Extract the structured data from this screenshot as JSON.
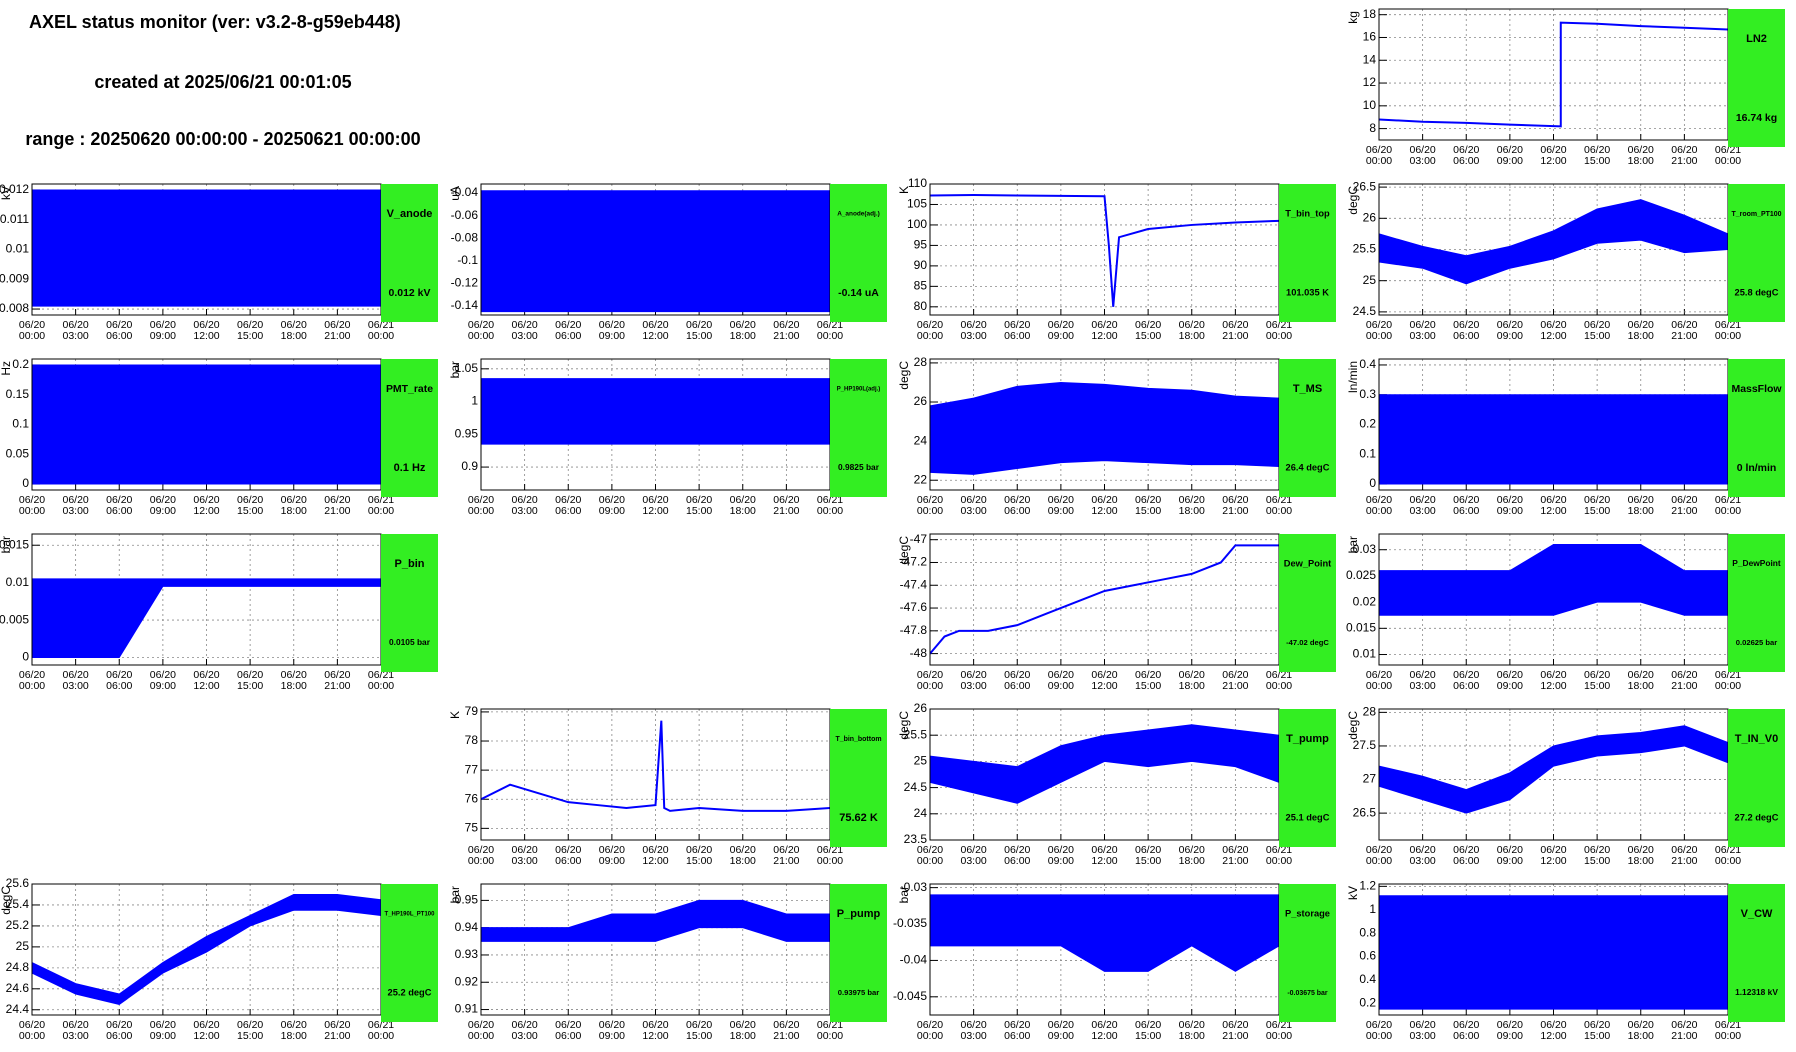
{
  "header": {
    "title": "AXEL status monitor (ver: v3.2-8-g59eb448)",
    "created": "created at 2025/06/21 00:01:05",
    "range": "range : 20250620 00:00:00 - 20250621 00:00:00"
  },
  "time_axis": {
    "xlim": [
      0,
      24
    ],
    "ticks": [
      {
        "value": 0,
        "date": "06/20",
        "time": "00:00"
      },
      {
        "value": 3,
        "date": "06/20",
        "time": "03:00"
      },
      {
        "value": 6,
        "date": "06/20",
        "time": "06:00"
      },
      {
        "value": 9,
        "date": "06/20",
        "time": "09:00"
      },
      {
        "value": 12,
        "date": "06/20",
        "time": "12:00"
      },
      {
        "value": 15,
        "date": "06/20",
        "time": "15:00"
      },
      {
        "value": 18,
        "date": "06/20",
        "time": "18:00"
      },
      {
        "value": 21,
        "date": "06/20",
        "time": "21:00"
      },
      {
        "value": 24,
        "date": "06/21",
        "time": "00:00"
      }
    ]
  },
  "color": "#0000ff",
  "panel_color": "#33ee22",
  "rows": [
    [
      null,
      null,
      null,
      {
        "name": "LN2",
        "unit": "kg",
        "value_text": "16.74 kg",
        "ylim": [
          7,
          18.5
        ],
        "yticks": [
          8,
          10,
          12,
          14,
          16,
          18
        ],
        "x": [
          0,
          3,
          6,
          9,
          12.5,
          12.5,
          15,
          18,
          21,
          24
        ],
        "values": [
          8.8,
          8.6,
          8.5,
          8.35,
          8.2,
          17.3,
          17.2,
          17,
          16.85,
          16.7
        ]
      }
    ],
    [
      {
        "name": "V_anode",
        "unit": "kV",
        "value_text": "0.012 kV",
        "ylim": [
          0.0078,
          0.0122
        ],
        "yticks": [
          0.008,
          0.009,
          0.01,
          0.011,
          0.012
        ],
        "x": [
          0,
          3,
          6,
          9,
          12,
          15,
          18,
          21,
          24
        ],
        "lower": [
          0.0081,
          0.0081,
          0.0081,
          0.0081,
          0.0081,
          0.0081,
          0.0081,
          0.0081,
          0.0081
        ],
        "upper": [
          0.012,
          0.012,
          0.012,
          0.012,
          0.012,
          0.012,
          0.012,
          0.012,
          0.012
        ]
      },
      {
        "name": "A_anode(adj.)",
        "unit": "uA",
        "value_text": "-0.14 uA",
        "ylim": [
          -0.148,
          -0.032
        ],
        "yticks": [
          -0.14,
          -0.12,
          -0.1,
          -0.08,
          -0.06,
          -0.04
        ],
        "x": [
          0,
          3,
          6,
          9,
          12,
          15,
          18,
          21,
          24
        ],
        "lower": [
          -0.145,
          -0.145,
          -0.145,
          -0.145,
          -0.145,
          -0.145,
          -0.145,
          -0.145,
          -0.145
        ],
        "upper": [
          -0.038,
          -0.038,
          -0.038,
          -0.038,
          -0.038,
          -0.038,
          -0.038,
          -0.038,
          -0.038
        ]
      },
      {
        "name": "T_bin_top",
        "unit": "K",
        "value_text": "101.035 K",
        "ylim": [
          78,
          110
        ],
        "yticks": [
          80,
          85,
          90,
          95,
          100,
          105,
          110
        ],
        "x": [
          0,
          3,
          6,
          9,
          12,
          12.3,
          12.6,
          13,
          15,
          18,
          21,
          24
        ],
        "values": [
          107.2,
          107.3,
          107.2,
          107.1,
          107,
          95,
          80,
          97,
          99,
          100,
          100.6,
          101
        ]
      },
      {
        "name": "T_room_PT100",
        "unit": "degC",
        "value_text": "25.8 degC",
        "ylim": [
          24.45,
          26.55
        ],
        "yticks": [
          24.5,
          25,
          25.5,
          26,
          26.5
        ],
        "x": [
          0,
          3,
          6,
          9,
          12,
          15,
          18,
          21,
          24
        ],
        "lower": [
          25.3,
          25.2,
          24.95,
          25.2,
          25.35,
          25.6,
          25.65,
          25.45,
          25.5
        ],
        "upper": [
          25.75,
          25.55,
          25.4,
          25.55,
          25.8,
          26.15,
          26.3,
          26.05,
          25.75
        ]
      }
    ],
    [
      {
        "name": "PMT_rate",
        "unit": "Hz",
        "value_text": "0.1 Hz",
        "ylim": [
          -0.01,
          0.21
        ],
        "yticks": [
          0,
          0.05,
          0.1,
          0.15,
          0.2
        ],
        "x": [
          0,
          3,
          6,
          9,
          12,
          15,
          18,
          21,
          24
        ],
        "lower": [
          0,
          0,
          0,
          0,
          0,
          0,
          0,
          0,
          0
        ],
        "upper": [
          0.2,
          0.2,
          0.2,
          0.2,
          0.2,
          0.2,
          0.2,
          0.2,
          0.2
        ]
      },
      {
        "name": "P_HP190L(adj.)",
        "unit": "bar",
        "value_text": "0.9825 bar",
        "ylim": [
          0.865,
          1.065
        ],
        "yticks": [
          0.9,
          0.95,
          1,
          1.05
        ],
        "x": [
          0,
          3,
          6,
          9,
          12,
          15,
          18,
          21,
          24
        ],
        "lower": [
          0.935,
          0.935,
          0.935,
          0.935,
          0.935,
          0.935,
          0.935,
          0.935,
          0.935
        ],
        "upper": [
          1.035,
          1.035,
          1.035,
          1.035,
          1.035,
          1.035,
          1.035,
          1.035,
          1.035
        ]
      },
      {
        "name": "T_MS",
        "unit": "degC",
        "value_text": "26.4 degC",
        "ylim": [
          21.5,
          28.2
        ],
        "yticks": [
          22,
          24,
          26,
          28
        ],
        "x": [
          0,
          3,
          6,
          9,
          12,
          15,
          18,
          21,
          24
        ],
        "lower": [
          22.4,
          22.3,
          22.6,
          22.9,
          23,
          22.9,
          22.8,
          22.8,
          22.7
        ],
        "upper": [
          25.8,
          26.2,
          26.8,
          27,
          26.9,
          26.7,
          26.6,
          26.3,
          26.2
        ]
      },
      {
        "name": "MassFlow",
        "unit": "ln/min",
        "value_text": "0 ln/min",
        "ylim": [
          -0.02,
          0.42
        ],
        "yticks": [
          0,
          0.1,
          0.2,
          0.3,
          0.4
        ],
        "x": [
          0,
          3,
          6,
          9,
          12,
          15,
          18,
          21,
          24
        ],
        "lower": [
          0,
          0,
          0,
          0,
          0,
          0,
          0,
          0,
          0
        ],
        "upper": [
          0.3,
          0.3,
          0.3,
          0.3,
          0.3,
          0.3,
          0.3,
          0.3,
          0.3
        ]
      }
    ],
    [
      {
        "name": "P_bin",
        "unit": "bar",
        "value_text": "0.0105 bar",
        "ylim": [
          -0.001,
          0.0165
        ],
        "yticks": [
          0,
          0.005,
          0.01,
          0.015
        ],
        "x": [
          0,
          3,
          6,
          9,
          12,
          15,
          18,
          21,
          24
        ],
        "lower": [
          0,
          0,
          0,
          0.0095,
          0.0095,
          0.0095,
          0.0095,
          0.0095,
          0.0095
        ],
        "upper": [
          0.0105,
          0.0105,
          0.0105,
          0.0105,
          0.0105,
          0.0105,
          0.0105,
          0.0105,
          0.0105
        ]
      },
      null,
      {
        "name": "Dew_Point",
        "unit": "degC",
        "value_text": "-47.02 degC",
        "ylim": [
          -48.1,
          -46.95
        ],
        "yticks": [
          -48,
          -47.8,
          -47.6,
          -47.4,
          -47.2,
          -47
        ],
        "x": [
          0,
          1,
          2,
          4,
          6,
          8,
          10,
          12,
          14,
          16,
          18,
          20,
          21,
          22,
          24
        ],
        "values": [
          -48,
          -47.85,
          -47.8,
          -47.8,
          -47.75,
          -47.65,
          -47.55,
          -47.45,
          -47.4,
          -47.35,
          -47.3,
          -47.2,
          -47.05,
          -47.05,
          -47.05
        ]
      },
      {
        "name": "P_DewPoint",
        "unit": "bar",
        "value_text": "0.02625 bar",
        "ylim": [
          0.008,
          0.033
        ],
        "yticks": [
          0.01,
          0.015,
          0.02,
          0.025,
          0.03
        ],
        "x": [
          0,
          3,
          6,
          9,
          12,
          15,
          18,
          21,
          24
        ],
        "lower": [
          0.0175,
          0.0175,
          0.0175,
          0.0175,
          0.0175,
          0.02,
          0.02,
          0.0175,
          0.0175
        ],
        "upper": [
          0.026,
          0.026,
          0.026,
          0.026,
          0.031,
          0.031,
          0.031,
          0.026,
          0.026
        ]
      }
    ],
    [
      null,
      {
        "name": "T_bin_bottom",
        "unit": "K",
        "value_text": "75.62 K",
        "ylim": [
          74.6,
          79.1
        ],
        "yticks": [
          75,
          76,
          77,
          78,
          79
        ],
        "x": [
          0,
          2,
          4,
          6,
          8,
          10,
          12,
          12.4,
          12.6,
          13,
          15,
          18,
          21,
          24
        ],
        "values": [
          76,
          76.5,
          76.2,
          75.9,
          75.8,
          75.7,
          75.8,
          78.7,
          75.7,
          75.6,
          75.7,
          75.6,
          75.6,
          75.7
        ]
      },
      {
        "name": "T_pump",
        "unit": "degC",
        "value_text": "25.1 degC",
        "ylim": [
          23.5,
          26
        ],
        "yticks": [
          23.5,
          24,
          24.5,
          25,
          25.5,
          26
        ],
        "x": [
          0,
          3,
          6,
          9,
          12,
          15,
          18,
          21,
          24
        ],
        "lower": [
          24.6,
          24.4,
          24.2,
          24.6,
          25,
          24.9,
          25,
          24.9,
          24.6
        ],
        "upper": [
          25.1,
          25,
          24.9,
          25.3,
          25.5,
          25.6,
          25.7,
          25.6,
          25.5
        ]
      },
      {
        "name": "T_IN_V0",
        "unit": "degC",
        "value_text": "27.2 degC",
        "ylim": [
          26.1,
          28.05
        ],
        "yticks": [
          26.5,
          27,
          27.5,
          28
        ],
        "x": [
          0,
          3,
          6,
          9,
          12,
          15,
          18,
          21,
          24
        ],
        "lower": [
          26.9,
          26.7,
          26.5,
          26.7,
          27.2,
          27.35,
          27.4,
          27.5,
          27.25
        ],
        "upper": [
          27.2,
          27.05,
          26.85,
          27.1,
          27.5,
          27.65,
          27.7,
          27.8,
          27.55
        ]
      }
    ],
    [
      {
        "name": "T_HP190L_PT100",
        "unit": "degC",
        "value_text": "25.2 degC",
        "ylim": [
          24.35,
          25.6
        ],
        "yticks": [
          24.4,
          24.6,
          24.8,
          25,
          25.2,
          25.4,
          25.6
        ],
        "x": [
          0,
          3,
          6,
          9,
          12,
          15,
          18,
          21,
          24
        ],
        "lower": [
          24.75,
          24.55,
          24.45,
          24.75,
          24.95,
          25.2,
          25.35,
          25.35,
          25.3
        ],
        "upper": [
          24.85,
          24.65,
          24.55,
          24.85,
          25.1,
          25.3,
          25.5,
          25.5,
          25.45
        ]
      },
      {
        "name": "P_pump",
        "unit": "bar",
        "value_text": "0.93975 bar",
        "ylim": [
          0.908,
          0.956
        ],
        "yticks": [
          0.91,
          0.92,
          0.93,
          0.94,
          0.95
        ],
        "x": [
          0,
          3,
          6,
          9,
          12,
          15,
          18,
          21,
          24
        ],
        "lower": [
          0.935,
          0.935,
          0.935,
          0.935,
          0.935,
          0.94,
          0.94,
          0.935,
          0.935
        ],
        "upper": [
          0.94,
          0.94,
          0.94,
          0.945,
          0.945,
          0.95,
          0.95,
          0.945,
          0.945
        ]
      },
      {
        "name": "P_storage",
        "unit": "bar",
        "value_text": "-0.03675 bar",
        "ylim": [
          -0.0475,
          -0.0295
        ],
        "yticks": [
          -0.045,
          -0.04,
          -0.035,
          -0.03
        ],
        "x": [
          0,
          3,
          6,
          9,
          12,
          15,
          18,
          21,
          24
        ],
        "lower": [
          -0.038,
          -0.038,
          -0.038,
          -0.038,
          -0.0415,
          -0.0415,
          -0.038,
          -0.0415,
          -0.038
        ],
        "upper": [
          -0.031,
          -0.031,
          -0.031,
          -0.031,
          -0.031,
          -0.031,
          -0.031,
          -0.031,
          -0.031
        ]
      },
      {
        "name": "V_CW",
        "unit": "kV",
        "value_text": "1.12318 kV",
        "ylim": [
          0.1,
          1.22
        ],
        "yticks": [
          0.2,
          0.4,
          0.6,
          0.8,
          1,
          1.2
        ],
        "x": [
          0,
          3,
          6,
          9,
          12,
          15,
          18,
          21,
          24
        ],
        "lower": [
          0.15,
          0.15,
          0.15,
          0.15,
          0.15,
          0.15,
          0.15,
          0.15,
          0.15
        ],
        "upper": [
          1.12,
          1.12,
          1.12,
          1.12,
          1.12,
          1.12,
          1.12,
          1.12,
          1.12
        ]
      }
    ]
  ]
}
